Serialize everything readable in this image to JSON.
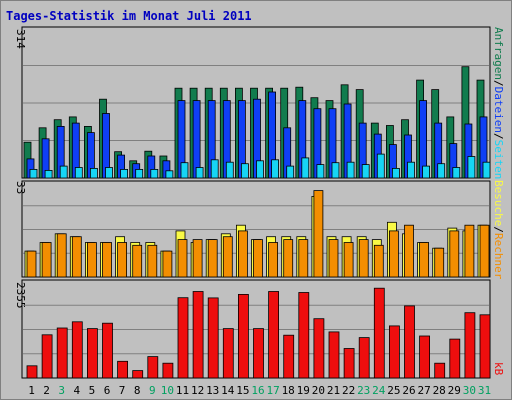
{
  "chart_data": {
    "type": "bar",
    "title": "Tages-Statistik im Monat Juli 2011",
    "grid": true,
    "days": [
      "1",
      "2",
      "3",
      "4",
      "5",
      "6",
      "7",
      "8",
      "9",
      "10",
      "11",
      "12",
      "13",
      "14",
      "15",
      "16",
      "17",
      "18",
      "19",
      "20",
      "21",
      "22",
      "23",
      "24",
      "25",
      "26",
      "27",
      "28",
      "29",
      "30",
      "31"
    ],
    "weekend_days": [
      "3",
      "9",
      "10",
      "16",
      "17",
      "23",
      "24",
      "30",
      "31"
    ],
    "panels": [
      {
        "id": "top",
        "max_label": "314",
        "ylim": [
          0,
          314
        ],
        "series": [
          {
            "name": "Anfragen",
            "color": "#117c4e",
            "values": [
              75,
              105,
              122,
              128,
              108,
              165,
              55,
              36,
              56,
              46,
              188,
              188,
              188,
              188,
              188,
              188,
              188,
              188,
              190,
              168,
              162,
              195,
              185,
              115,
              110,
              122,
              205,
              185,
              128,
              233,
              205
            ]
          },
          {
            "name": "Dateien",
            "color": "#0f3ff5",
            "values": [
              40,
              82,
              108,
              115,
              95,
              135,
              48,
              30,
              46,
              36,
              162,
              162,
              162,
              162,
              162,
              165,
              180,
              105,
              162,
              145,
              145,
              155,
              115,
              92,
              70,
              90,
              162,
              115,
              72,
              113,
              128
            ]
          },
          {
            "name": "Seiten",
            "color": "#16d5f5",
            "values": [
              18,
              16,
              25,
              22,
              20,
              22,
              18,
              18,
              18,
              15,
              32,
              22,
              38,
              33,
              30,
              36,
              38,
              25,
              42,
              28,
              32,
              33,
              28,
              50,
              20,
              33,
              25,
              30,
              22,
              45,
              33
            ]
          }
        ]
      },
      {
        "id": "middle",
        "max_label": "33",
        "ylim": [
          0,
          33
        ],
        "series": [
          {
            "name": "Besuche",
            "color": "#f9f946",
            "values": [
              9,
              12,
              15,
              14,
              12,
              12,
              14,
              12,
              12,
              9,
              16,
              12,
              13,
              15,
              18,
              13,
              14,
              14,
              14,
              28,
              14,
              14,
              14,
              13,
              19,
              15,
              12,
              10,
              17,
              16,
              18
            ]
          },
          {
            "name": "Rechner",
            "color": "#f38e01",
            "values": [
              9,
              12,
              15,
              14,
              12,
              12,
              12,
              11,
              11,
              9,
              13,
              13,
              13,
              14,
              16,
              13,
              12,
              13,
              13,
              30,
              13,
              12,
              13,
              11,
              16,
              18,
              12,
              10,
              16,
              18,
              18
            ]
          }
        ]
      },
      {
        "id": "bottom",
        "max_label": "2355",
        "ylim": [
          0,
          2355
        ],
        "series": [
          {
            "name": "kB",
            "color": "#ee0e0e",
            "values": [
              295,
              1050,
              1215,
              1365,
              1200,
              1330,
              405,
              180,
              520,
              360,
              1950,
              2100,
              1945,
              1200,
              2030,
              1200,
              2100,
              1040,
              2075,
              1440,
              1120,
              715,
              980,
              2180,
              1265,
              1750,
              1020,
              360,
              945,
              1585,
              1535
            ]
          }
        ]
      }
    ]
  },
  "legend": {
    "anfragen": "Anfragen",
    "dateien": "Dateien",
    "seiten": "Seiten",
    "besuche": "Besuche",
    "rechner": "Rechner",
    "kb": "kB",
    "separator": "/"
  },
  "colors": {
    "background": "#c0c0c0",
    "title": "#0000c0",
    "weekend_label": "#00a060",
    "weekday_label": "#000000"
  }
}
